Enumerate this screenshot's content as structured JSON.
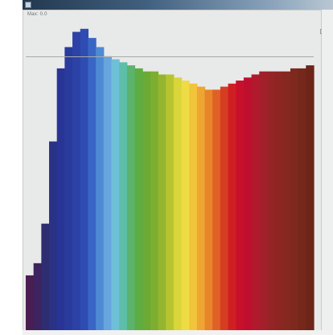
{
  "window": {
    "status_text": "Max: 0.0"
  },
  "toolbar": {
    "corner_glyph": "⊡"
  },
  "histogram": {
    "bin_count": 37,
    "levels": [
      0.18,
      0.22,
      0.35,
      0.62,
      0.86,
      0.93,
      0.98,
      0.99,
      0.96,
      0.93,
      0.9,
      0.89,
      0.88,
      0.87,
      0.86,
      0.85,
      0.85,
      0.84,
      0.84,
      0.83,
      0.82,
      0.81,
      0.8,
      0.79,
      0.79,
      0.8,
      0.81,
      0.82,
      0.83,
      0.84,
      0.85,
      0.85,
      0.85,
      0.85,
      0.86,
      0.86,
      0.87
    ],
    "colors": [
      "#4a1e52",
      "#3d2360",
      "#2f2d72",
      "#2a3286",
      "#283596",
      "#2a3b9e",
      "#2c42a6",
      "#2e4cb2",
      "#3966c4",
      "#4d8ad3",
      "#66a5dd",
      "#6ec0d7",
      "#5dbfa9",
      "#5bb36e",
      "#5ead43",
      "#6aaa35",
      "#7cae2f",
      "#95b52f",
      "#b6c430",
      "#d9d53a",
      "#efdc45",
      "#f2c43c",
      "#eea531",
      "#e8842a",
      "#e06125",
      "#d63d22",
      "#cf1f23",
      "#c8102a",
      "#bf0f2e",
      "#b01a2c",
      "#a2202a",
      "#962426",
      "#8d2623",
      "#862820",
      "#7e291d",
      "#76281a",
      "#6c2518"
    ]
  }
}
